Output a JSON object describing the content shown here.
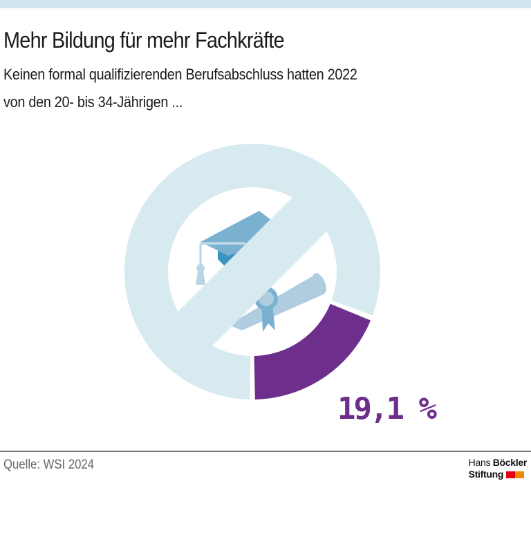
{
  "title": "Mehr Bildung für mehr Fachkräfte",
  "subtitle_line1": "Keinen formal qualifizierenden Berufsabschluss hatten 2022",
  "subtitle_line2": "von den 20- bis 34-Jährigen ...",
  "source": "Quelle: WSI 2024",
  "logo": {
    "line1a": "Hans",
    "line1b": "Böckler",
    "line2": "Stiftung"
  },
  "chart_data": {
    "type": "pie",
    "variant": "donut",
    "slices": [
      {
        "value": 19.1,
        "label": "19,1 %",
        "color": "#6e2f8c"
      },
      {
        "value": 80.9,
        "color": "#d6eaf0"
      }
    ],
    "center_icon": "graduation-cap-and-diploma-crossed-out"
  },
  "colors": {
    "accent": "#6e2f8c",
    "ring": "#d6eaf0",
    "topbar": "#cfe4ec"
  }
}
